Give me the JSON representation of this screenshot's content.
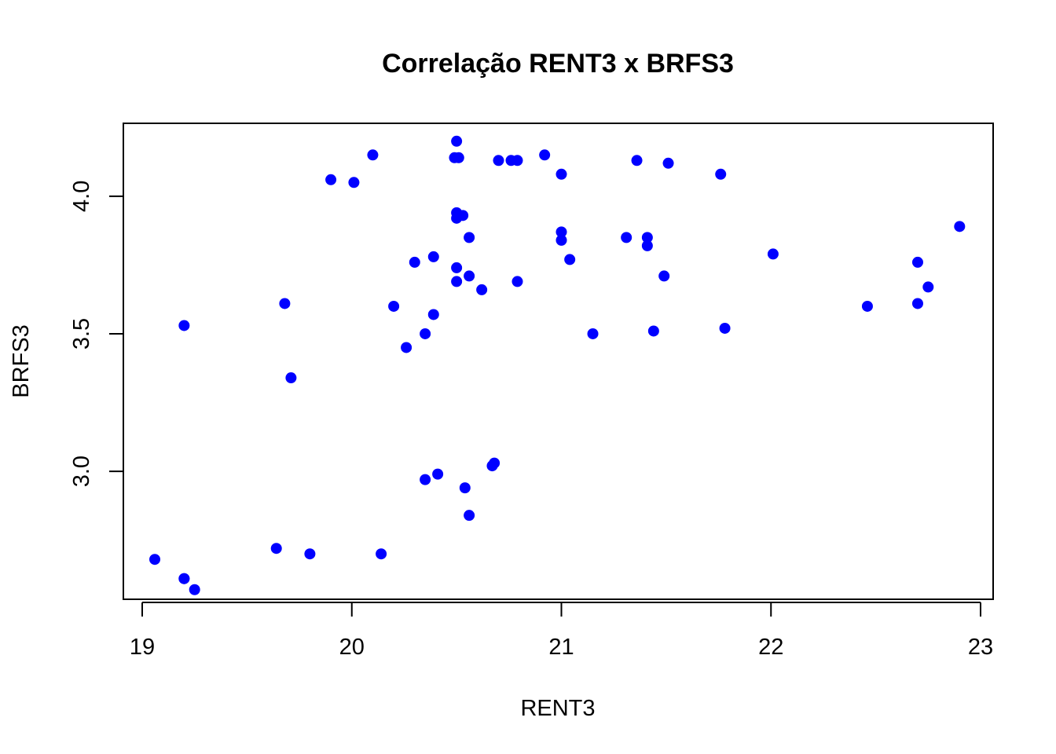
{
  "chart_data": {
    "type": "scatter",
    "title": "Correlação RENT3 x BRFS3",
    "xlabel": "RENT3",
    "ylabel": "BRFS3",
    "xlim": [
      18.91,
      23.06
    ],
    "ylim": [
      2.535,
      4.265
    ],
    "xticks": [
      19,
      20,
      21,
      22,
      23
    ],
    "xtick_labels": [
      "19",
      "20",
      "21",
      "22",
      "23"
    ],
    "yticks": [
      3.0,
      3.5,
      4.0
    ],
    "ytick_labels": [
      "3.0",
      "3.5",
      "4.0"
    ],
    "grid": false,
    "marker_color": "#0000ff",
    "series": [
      {
        "x": [
          19.06,
          19.2,
          19.25,
          19.2,
          19.64,
          19.8,
          20.14,
          20.35,
          20.41,
          20.54,
          20.56,
          20.67,
          20.68,
          19.71,
          19.68,
          19.2,
          20.26,
          20.35,
          20.39,
          20.2,
          20.3,
          20.39,
          20.5,
          20.5,
          20.56,
          20.62,
          20.79,
          20.5,
          20.5,
          20.51,
          20.53,
          20.56,
          19.9,
          20.01,
          20.1,
          20.49,
          20.51,
          20.5,
          20.7,
          20.76,
          20.79,
          20.92,
          21.0,
          21.0,
          21.04,
          21.0,
          21.15,
          21.31,
          21.36,
          21.41,
          21.41,
          21.44,
          21.49,
          21.51,
          21.76,
          21.78,
          22.01,
          22.46,
          22.7,
          22.7,
          22.75,
          22.9
        ],
        "y": [
          2.68,
          2.61,
          2.57,
          2.61,
          2.72,
          2.7,
          2.7,
          2.97,
          2.99,
          2.94,
          2.84,
          3.02,
          3.03,
          3.34,
          3.61,
          3.53,
          3.45,
          3.5,
          3.57,
          3.6,
          3.76,
          3.78,
          3.74,
          3.69,
          3.71,
          3.66,
          3.69,
          3.92,
          3.94,
          3.93,
          3.93,
          3.85,
          4.06,
          4.05,
          4.15,
          4.14,
          4.14,
          4.2,
          4.13,
          4.13,
          4.13,
          4.15,
          4.08,
          3.87,
          3.77,
          3.84,
          3.5,
          3.85,
          4.13,
          3.85,
          3.82,
          3.51,
          3.71,
          4.12,
          4.08,
          3.52,
          3.79,
          3.6,
          3.76,
          3.61,
          3.67,
          3.89
        ]
      }
    ]
  }
}
